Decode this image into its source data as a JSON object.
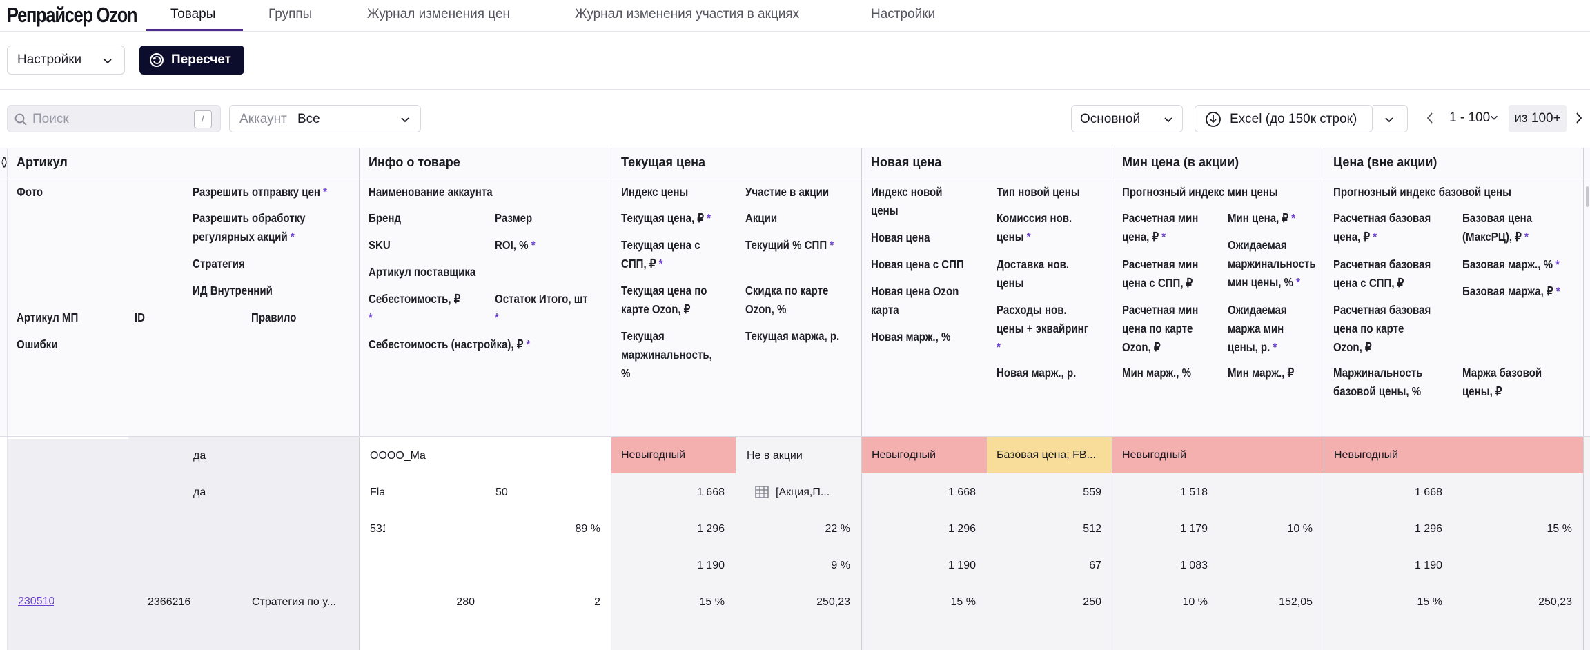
{
  "app": {
    "title": "Репрайсер Ozon"
  },
  "nav": {
    "tabs": [
      {
        "label": "Товары",
        "active": true
      },
      {
        "label": "Группы",
        "active": false
      },
      {
        "label": "Журнал изменения цен",
        "active": false
      },
      {
        "label": "Журнал изменения участия в акциях",
        "active": false
      },
      {
        "label": "Настройки",
        "active": false
      }
    ]
  },
  "toolbar": {
    "settings_label": "Настройки",
    "recalc_label": "Пересчет"
  },
  "filters": {
    "search_placeholder": "Поиск",
    "search_shortcut": "/",
    "account_label": "Аккаунт",
    "account_value": "Все",
    "view_value": "Основной",
    "excel_label": "Excel (до 150к строк)",
    "pagination_range": "1 - 100",
    "pagination_total": "из 100+"
  },
  "table": {
    "groups": [
      "Артикул",
      "Инфо о товаре",
      "Текущая цена",
      "Новая цена",
      "Мин цена (в акции)",
      "Цена (вне акции)"
    ],
    "headers": {
      "artikul": {
        "photo": "Фото",
        "allow_send": "Разрешить отправку цен",
        "allow_regular": "Разрешить обработку\nрегулярных акций",
        "strategy": "Стратегия",
        "internal_id": "ИД Внутренний",
        "artikul_mp": "Артикул МП",
        "id": "ID",
        "rule": "Правило",
        "errors": "Ошибки"
      },
      "info": {
        "account_name": "Наименование аккаунта",
        "brand": "Бренд",
        "size": "Размер",
        "sku": "SKU",
        "roi": "ROI, %",
        "supplier_art": "Артикул поставщика",
        "cost": "Себестоимость, ₽",
        "stock": "Остаток Итого, шт",
        "cost_setting": "Себестоимость (настройка), ₽"
      },
      "current": {
        "price_index": "Индекс цены",
        "promo_part": "Участие в акции",
        "current_price": "Текущая цена, ₽",
        "promos": "Акции",
        "price_spp": "Текущая цена с\nСПП, ₽",
        "spp_pct": "Текущий % СПП",
        "price_card": "Текущая цена по\nкарте Ozon, ₽",
        "card_discount": "Скидка по карте\nOzon, %",
        "margin_pct": "Текущая\nмаржинальность,\n%",
        "margin_rub": "Текущая маржа, р."
      },
      "new_price": {
        "new_index": "Индекс новой\nцены",
        "new_type": "Тип новой цены",
        "new_price": "Новая цена",
        "new_commission": "Комиссия нов.\nцены",
        "new_price_spp": "Новая цена с СПП",
        "new_delivery": "Доставка нов.\nцены",
        "new_price_card": "Новая цена Ozon\nкарта",
        "new_expenses": "Расходы нов.\nцены + эквайринг",
        "new_margin_pct": "Новая марж., %",
        "new_margin_rub": "Новая марж., р."
      },
      "min_price": {
        "forecast_index": "Прогнозный индекс мин цены",
        "calc_min": "Расчетная мин\nцена, ₽",
        "min_price": "Мин цена, ₽",
        "calc_min_spp": "Расчетная мин\nцена с СПП, ₽",
        "exp_margin_pct": "Ожидаемая\nмаржинальность\nмин цены, %",
        "calc_min_card": "Расчетная мин\nцена по карте\nOzon, ₽",
        "exp_margin_rub": "Ожидаемая\nмаржа мин\nцены, р.",
        "min_margin_pct": "Мин марж., %",
        "min_margin_p": "Мин марж., ₽"
      },
      "base_price": {
        "forecast_index": "Прогнозный индекс базовой цены",
        "calc_base": "Расчетная базовая\nцена, ₽",
        "base_maxrrc": "Базовая цена\n(МаксРЦ), ₽",
        "calc_base_spp": "Расчетная базовая\nцена с СПП, ₽",
        "base_margin_pct": "Базовая марж., %",
        "base_margin_rub": "Базовая маржа, ₽",
        "calc_base_card": "Расчетная базовая\nцена по карте\nOzon, ₽",
        "base_marginality": "Маржинальность\nбазовой цены, %",
        "base_margin": "Маржа базовой\nцены, ₽"
      }
    },
    "row": {
      "allow_send": "да",
      "allow_regular": "да",
      "artikul_mp": "230510",
      "id": "2366216",
      "rule": "Стратегия по у...",
      "account_name": "OOOO_Ma",
      "brand": "Fla",
      "size": "50",
      "sku": "531",
      "roi": "89 %",
      "cost": "280",
      "stock": "2",
      "price_index": "Невыгодный",
      "promo_part": "Не в акции",
      "current_price": "1 668",
      "promos": "[Акция,П...",
      "price_spp": "1 296",
      "spp_pct": "22 %",
      "price_card": "1 190",
      "card_discount": "9 %",
      "margin_pct": "15 %",
      "margin_rub": "250,23",
      "new_index": "Невыгодный",
      "new_type": "Базовая цена; FB...",
      "new_price": "1 668",
      "new_commission": "559",
      "new_price_spp": "1 296",
      "new_delivery": "512",
      "new_price_card": "1 190",
      "new_expenses": "67",
      "new_margin_pct": "15 %",
      "new_margin_rub": "250",
      "min_index": "Невыгодный",
      "calc_min": "1 518",
      "calc_min_spp": "1 179",
      "exp_margin_pct": "10 %",
      "calc_min_card": "1 083",
      "min_margin_pct": "10 %",
      "min_margin_p": "152,05",
      "base_index": "Невыгодный",
      "calc_base": "1 668",
      "calc_base_spp": "1 296",
      "base_margin_pct": "15 %",
      "calc_base_card": "1 190",
      "base_marginality": "15 %",
      "base_margin": "250,23"
    }
  },
  "colors": {
    "accent": "#4d2b8f",
    "primary_button": "#0c0c2c",
    "required_star": "#6c3fd1",
    "bad_index": "#f4b0ae",
    "price_type": "#f8dc9a"
  }
}
